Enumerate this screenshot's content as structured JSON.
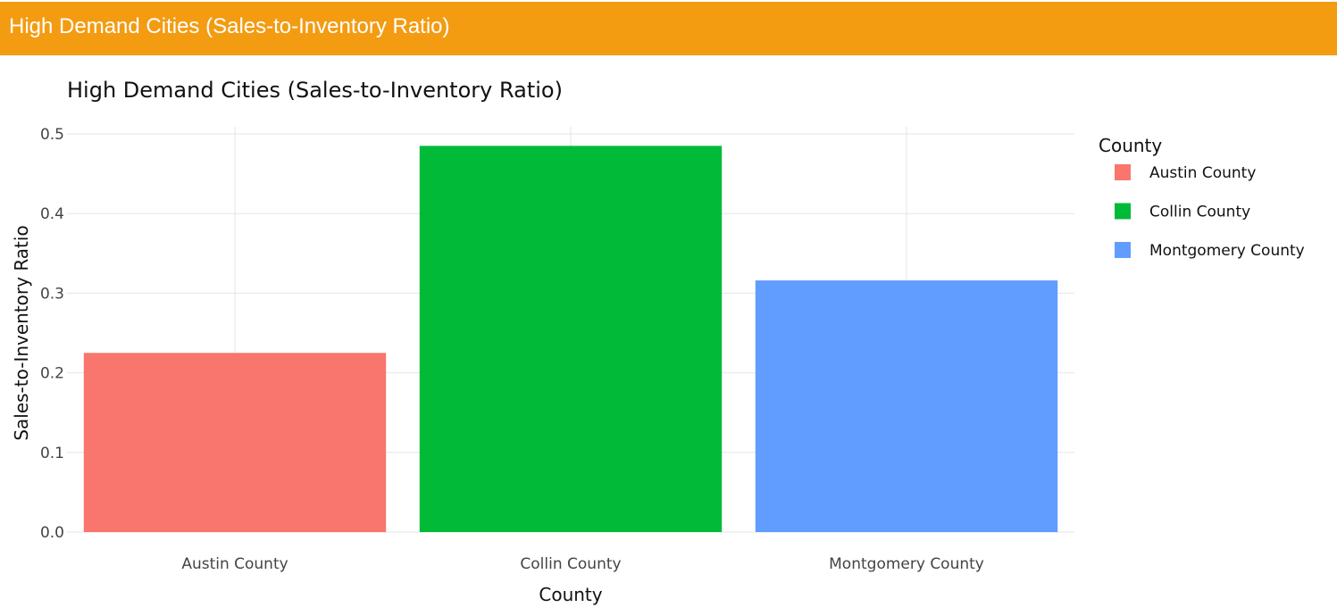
{
  "header": {
    "title": "High Demand Cities (Sales-to-Inventory Ratio)"
  },
  "chart_data": {
    "type": "bar",
    "title": "High Demand Cities (Sales-to-Inventory Ratio)",
    "xlabel": "County",
    "ylabel": "Sales-to-Inventory Ratio",
    "categories": [
      "Austin County",
      "Collin County",
      "Montgomery County"
    ],
    "values": [
      0.225,
      0.485,
      0.316
    ],
    "colors": [
      "#f8766d",
      "#00ba38",
      "#619cff"
    ],
    "ylim": [
      0,
      0.5
    ],
    "yticks": [
      "0.0",
      "0.1",
      "0.2",
      "0.3",
      "0.4",
      "0.5"
    ],
    "grid": true,
    "legend": {
      "title": "County",
      "placement": "right",
      "entries": [
        "Austin County",
        "Collin County",
        "Montgomery County"
      ]
    }
  }
}
